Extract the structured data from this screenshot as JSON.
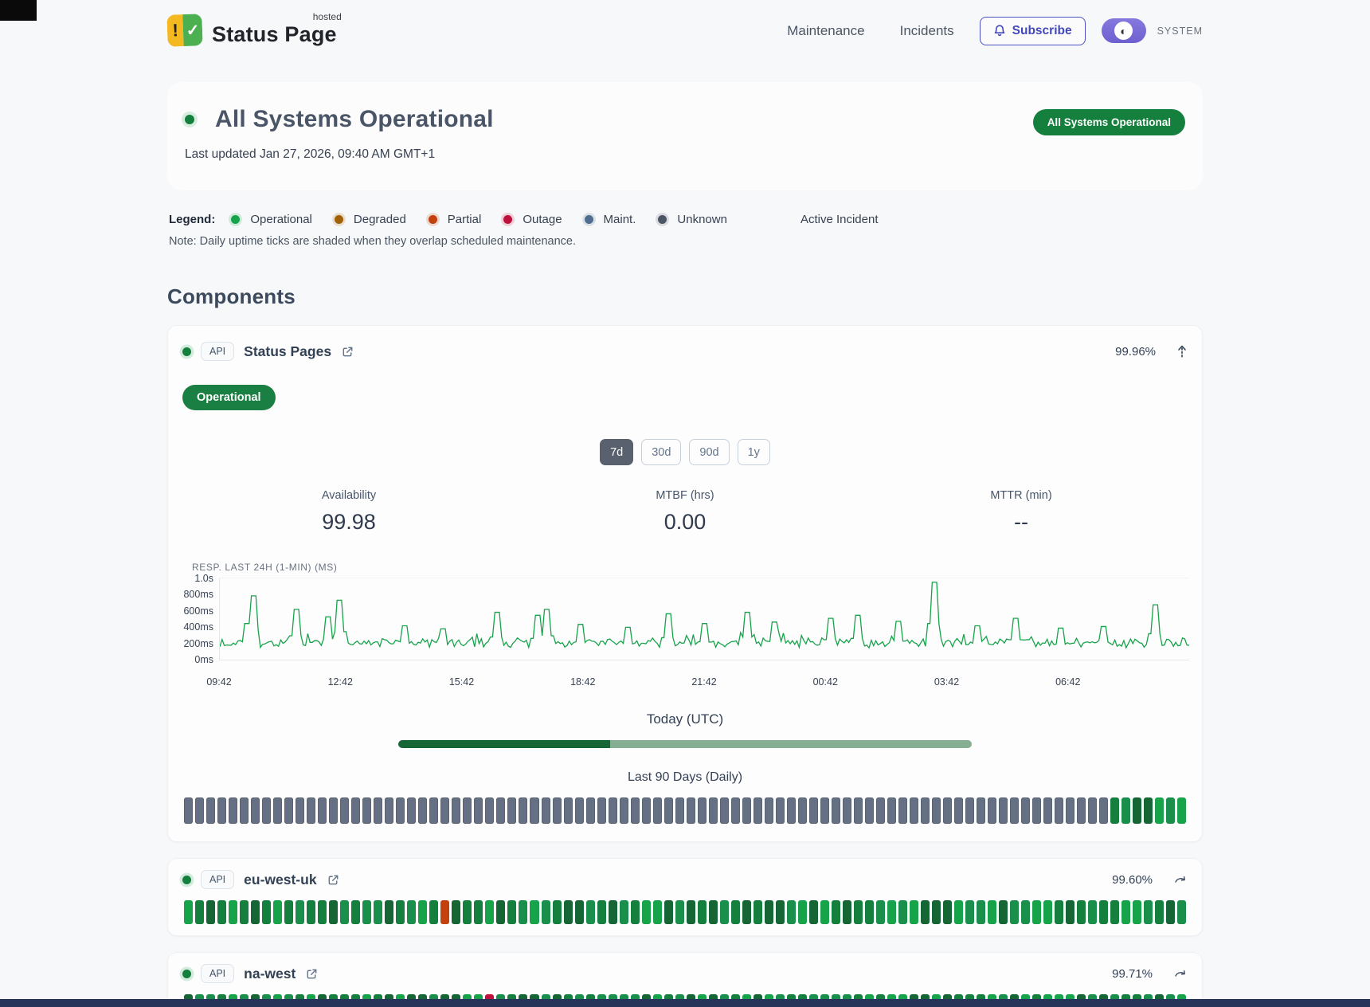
{
  "colors": {
    "accent_green": "#16a34a",
    "dark_green": "#166534",
    "badge_green": "#15803d",
    "unknown_tick": "#667085",
    "tick_greens": [
      "#16a34a",
      "#15803d",
      "#166534",
      "#1a8f4b"
    ],
    "partial": "#c2410c",
    "outage": "#be123c",
    "subscribe_blue": "#4348b9",
    "toggle_purple": "#7c6ed4"
  },
  "header": {
    "brand": "Status Page",
    "brand_sup": "hosted",
    "logo": {
      "exclamation": "!",
      "check": "✓"
    },
    "nav": [
      {
        "label": "Maintenance"
      },
      {
        "label": "Incidents"
      }
    ],
    "subscribe_label": "Subscribe",
    "theme_label": "SYSTEM"
  },
  "hero": {
    "title": "All Systems Operational",
    "updated": "Last updated Jan 27, 2026, 09:40 AM GMT+1",
    "badge": "All Systems Operational"
  },
  "legend": {
    "label": "Legend:",
    "items": [
      {
        "label": "Operational",
        "color": "#16a34a"
      },
      {
        "label": "Degraded",
        "color": "#a16207"
      },
      {
        "label": "Partial",
        "color": "#c2410c"
      },
      {
        "label": "Outage",
        "color": "#be123c"
      },
      {
        "label": "Maint.",
        "color": "#4f6e8f"
      },
      {
        "label": "Unknown",
        "color": "#4b5563"
      }
    ],
    "active_incident": "Active Incident",
    "note": "Note: Daily uptime ticks are shaded when they overlap scheduled maintenance."
  },
  "components": {
    "heading": "Components"
  },
  "component_main": {
    "badge": "API",
    "name": "Status Pages",
    "uptime": "99.96%",
    "status": "Operational",
    "ranges": [
      "7d",
      "30d",
      "90d",
      "1y"
    ],
    "active_range": "7d",
    "stats": [
      {
        "label": "Availability",
        "value": "99.98"
      },
      {
        "label": "MTBF (hrs)",
        "value": "0.00"
      },
      {
        "label": "MTTR (min)",
        "value": "--"
      }
    ],
    "today_label": "Today (UTC)",
    "today_progress_pct": 37,
    "history_label": "Last 90 Days (Daily)",
    "history": {
      "total": 90,
      "leading_status": "unknown",
      "leading_count": 83,
      "trailing_status": "operational",
      "trailing_count": 7
    }
  },
  "chart_data": {
    "type": "line",
    "title": "RESP. LAST 24H (1-MIN) (MS)",
    "series_name": "Response time (1-min)",
    "y_ticks": [
      "1.0s",
      "800ms",
      "600ms",
      "400ms",
      "200ms",
      "0ms"
    ],
    "x_ticks": [
      "09:42",
      "12:42",
      "15:42",
      "18:42",
      "21:42",
      "00:42",
      "03:42",
      "06:42"
    ],
    "ylim_ms": [
      0,
      1000
    ],
    "baseline_ms": [
      150,
      260
    ],
    "line_color": "#16a34a",
    "spikes": [
      {
        "x_frac": 0.028,
        "ms": 450
      },
      {
        "x_frac": 0.034,
        "ms": 820
      },
      {
        "x_frac": 0.078,
        "ms": 640
      },
      {
        "x_frac": 0.112,
        "ms": 540
      },
      {
        "x_frac": 0.124,
        "ms": 760
      },
      {
        "x_frac": 0.19,
        "ms": 420
      },
      {
        "x_frac": 0.23,
        "ms": 380
      },
      {
        "x_frac": 0.285,
        "ms": 600
      },
      {
        "x_frac": 0.327,
        "ms": 560
      },
      {
        "x_frac": 0.338,
        "ms": 640
      },
      {
        "x_frac": 0.372,
        "ms": 440
      },
      {
        "x_frac": 0.42,
        "ms": 400
      },
      {
        "x_frac": 0.462,
        "ms": 580
      },
      {
        "x_frac": 0.5,
        "ms": 450
      },
      {
        "x_frac": 0.545,
        "ms": 600
      },
      {
        "x_frac": 0.572,
        "ms": 470
      },
      {
        "x_frac": 0.63,
        "ms": 520
      },
      {
        "x_frac": 0.657,
        "ms": 560
      },
      {
        "x_frac": 0.7,
        "ms": 480
      },
      {
        "x_frac": 0.737,
        "ms": 1000
      },
      {
        "x_frac": 0.782,
        "ms": 420
      },
      {
        "x_frac": 0.82,
        "ms": 520
      },
      {
        "x_frac": 0.868,
        "ms": 390
      },
      {
        "x_frac": 0.912,
        "ms": 410
      },
      {
        "x_frac": 0.965,
        "ms": 700
      }
    ]
  },
  "component_rows": [
    {
      "badge": "API",
      "name": "eu-west-uk",
      "uptime": "99.60%",
      "history": {
        "total": 90,
        "default": "operational",
        "overrides": [
          {
            "index": 23,
            "status": "partial"
          }
        ]
      }
    },
    {
      "badge": "API",
      "name": "na-west",
      "uptime": "99.71%",
      "history": {
        "total": 90,
        "default": "operational",
        "overrides": [
          {
            "index": 27,
            "status": "outage"
          }
        ]
      }
    }
  ]
}
